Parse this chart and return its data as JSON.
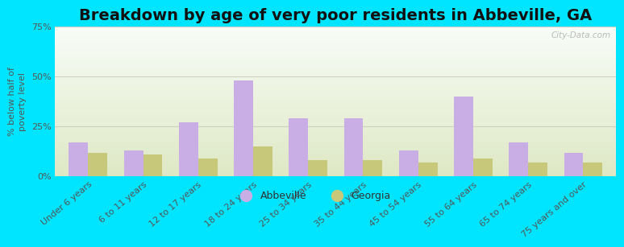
{
  "title": "Breakdown by age of very poor residents in Abbeville, GA",
  "ylabel": "% below half of\npoverty level",
  "categories": [
    "Under 6 years",
    "6 to 11 years",
    "12 to 17 years",
    "18 to 24 years",
    "25 to 34 years",
    "35 to 44 years",
    "45 to 54 years",
    "55 to 64 years",
    "65 to 74 years",
    "75 years and over"
  ],
  "abbeville_values": [
    17,
    13,
    27,
    48,
    29,
    29,
    13,
    40,
    17,
    12
  ],
  "georgia_values": [
    12,
    11,
    9,
    15,
    8,
    8,
    7,
    9,
    7,
    7
  ],
  "abbeville_color": "#c9aee5",
  "georgia_color": "#c8c87a",
  "ylim": [
    0,
    75
  ],
  "yticks": [
    0,
    25,
    50,
    75
  ],
  "ytick_labels": [
    "0%",
    "25%",
    "50%",
    "75%"
  ],
  "background_outer": "#00e5ff",
  "grid_color": "#d0d0c0",
  "bar_width": 0.35,
  "legend_labels": [
    "Abbeville",
    "Georgia"
  ],
  "watermark": "City-Data.com",
  "title_fontsize": 14,
  "axis_label_fontsize": 8,
  "tick_fontsize": 8
}
